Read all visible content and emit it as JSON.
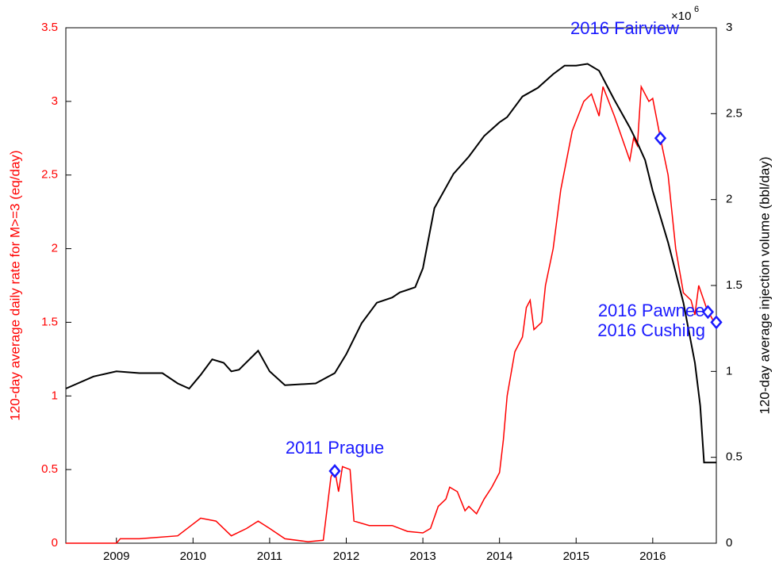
{
  "chart_data": {
    "type": "line",
    "y_label": "120-day average daily rate for M>=3 (eq/day)",
    "y2_label": "120-day average injection volume (bbl/day)",
    "y2_multiplier": {
      "base": "×10",
      "exponent": "6"
    },
    "xlim": [
      2008.34,
      2016.83
    ],
    "xticks": [
      2009,
      2010,
      2011,
      2012,
      2013,
      2014,
      2015,
      2016
    ],
    "ylim": [
      0,
      3.5
    ],
    "yticks": [
      0,
      0.5,
      1,
      1.5,
      2,
      2.5,
      3,
      3.5
    ],
    "y2lim": [
      0,
      3
    ],
    "y2ticks": [
      0,
      0.5,
      1,
      1.5,
      2,
      2.5,
      3
    ],
    "series": [
      {
        "color": "#ff0000",
        "axis": "y",
        "x": [
          2008.34,
          2009.0,
          2009.05,
          2009.3,
          2009.8,
          2010.1,
          2010.3,
          2010.5,
          2010.7,
          2010.85,
          2011.0,
          2011.2,
          2011.5,
          2011.7,
          2011.8,
          2011.85,
          2011.9,
          2011.95,
          2012.05,
          2012.1,
          2012.3,
          2012.6,
          2012.8,
          2013.0,
          2013.1,
          2013.2,
          2013.3,
          2013.35,
          2013.45,
          2013.55,
          2013.6,
          2013.7,
          2013.8,
          2013.9,
          2014.0,
          2014.05,
          2014.1,
          2014.2,
          2014.3,
          2014.35,
          2014.4,
          2014.45,
          2014.55,
          2014.6,
          2014.7,
          2014.8,
          2014.95,
          2015.1,
          2015.2,
          2015.3,
          2015.35,
          2015.5,
          2015.6,
          2015.7,
          2015.75,
          2015.8,
          2015.85,
          2015.95,
          2016.0,
          2016.1,
          2016.2,
          2016.3,
          2016.4,
          2016.5,
          2016.55,
          2016.6,
          2016.7,
          2016.8,
          2016.83
        ],
        "values": [
          0,
          0,
          0.03,
          0.03,
          0.05,
          0.17,
          0.15,
          0.05,
          0.1,
          0.15,
          0.1,
          0.03,
          0.01,
          0.02,
          0.45,
          0.5,
          0.35,
          0.52,
          0.5,
          0.15,
          0.12,
          0.12,
          0.08,
          0.07,
          0.1,
          0.25,
          0.3,
          0.38,
          0.35,
          0.22,
          0.25,
          0.2,
          0.3,
          0.38,
          0.48,
          0.7,
          1.0,
          1.3,
          1.4,
          1.6,
          1.65,
          1.45,
          1.5,
          1.75,
          2.0,
          2.4,
          2.8,
          3.0,
          3.05,
          2.9,
          3.1,
          2.9,
          2.75,
          2.6,
          2.75,
          2.7,
          3.1,
          3.0,
          3.02,
          2.75,
          2.5,
          2.0,
          1.7,
          1.65,
          1.55,
          1.75,
          1.6,
          1.5,
          1.5
        ]
      },
      {
        "color": "#000000",
        "axis": "y2",
        "x": [
          2008.34,
          2008.7,
          2009.0,
          2009.3,
          2009.6,
          2009.8,
          2009.95,
          2010.1,
          2010.25,
          2010.4,
          2010.5,
          2010.6,
          2010.85,
          2011.0,
          2011.2,
          2011.6,
          2011.85,
          2012.0,
          2012.2,
          2012.4,
          2012.6,
          2012.7,
          2012.9,
          2013.0,
          2013.15,
          2013.4,
          2013.6,
          2013.8,
          2014.0,
          2014.1,
          2014.3,
          2014.5,
          2014.7,
          2014.85,
          2015.0,
          2015.15,
          2015.3,
          2015.5,
          2015.7,
          2015.8,
          2015.9,
          2016.0,
          2016.2,
          2016.4,
          2016.55,
          2016.62,
          2016.67,
          2016.83
        ],
        "values": [
          0.9,
          0.97,
          1.0,
          0.99,
          0.99,
          0.93,
          0.9,
          0.98,
          1.07,
          1.05,
          1.0,
          1.01,
          1.12,
          1.0,
          0.92,
          0.93,
          0.99,
          1.1,
          1.28,
          1.4,
          1.43,
          1.46,
          1.49,
          1.6,
          1.95,
          2.15,
          2.25,
          2.37,
          2.45,
          2.48,
          2.6,
          2.65,
          2.73,
          2.78,
          2.78,
          2.79,
          2.75,
          2.58,
          2.42,
          2.33,
          2.23,
          2.05,
          1.75,
          1.4,
          1.05,
          0.8,
          0.47,
          0.47
        ]
      }
    ],
    "events": [
      {
        "label": "2011 Prague",
        "x": 2011.85,
        "y": 0.49
      },
      {
        "label": "2016 Fairview",
        "x": 2016.1,
        "y": 2.75
      },
      {
        "label": "2016 Pawnee",
        "x": 2016.72,
        "y": 1.57
      },
      {
        "label": "2016 Cushing",
        "x": 2016.83,
        "y": 1.5
      }
    ]
  }
}
